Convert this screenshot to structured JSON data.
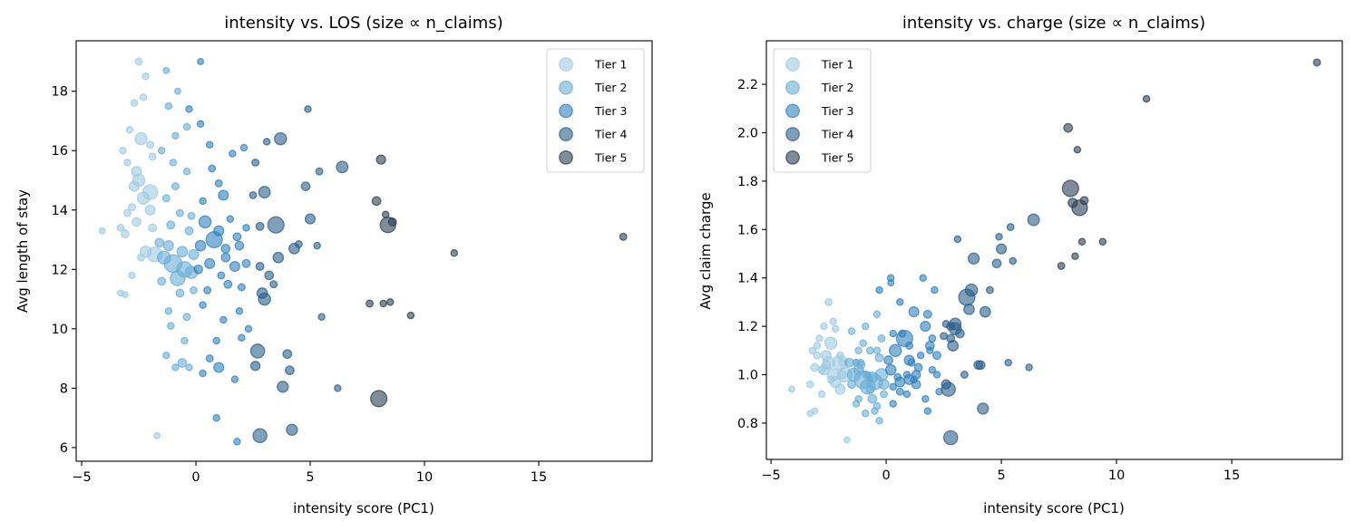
{
  "chart_data": {
    "type": "scatter",
    "points": {
      "columns": [
        "intensity_score",
        "avg_length_of_stay",
        "avg_claim_charge",
        "n_claims",
        "tier"
      ],
      "rows": [
        [
          18.7,
          13.1,
          2.29,
          20,
          5
        ],
        [
          11.3,
          12.55,
          2.14,
          18,
          5
        ],
        [
          9.4,
          10.45,
          1.55,
          18,
          5
        ],
        [
          8.4,
          13.5,
          1.69,
          100,
          5
        ],
        [
          8.0,
          7.65,
          1.77,
          110,
          5
        ],
        [
          8.1,
          15.7,
          1.71,
          35,
          5
        ],
        [
          8.3,
          13.85,
          1.93,
          18,
          5
        ],
        [
          7.9,
          14.3,
          2.02,
          30,
          5
        ],
        [
          8.6,
          13.6,
          1.72,
          25,
          5
        ],
        [
          8.5,
          10.9,
          1.55,
          18,
          5
        ],
        [
          8.2,
          10.85,
          1.49,
          18,
          5
        ],
        [
          7.6,
          10.85,
          1.45,
          20,
          5
        ],
        [
          6.2,
          8.0,
          1.03,
          18,
          4
        ],
        [
          6.4,
          15.45,
          1.64,
          55,
          4
        ],
        [
          5.5,
          10.4,
          1.47,
          18,
          4
        ],
        [
          5.4,
          15.3,
          1.61,
          20,
          4
        ],
        [
          5.3,
          12.8,
          1.05,
          18,
          4
        ],
        [
          5.0,
          13.7,
          1.52,
          40,
          4
        ],
        [
          4.9,
          17.4,
          1.57,
          18,
          4
        ],
        [
          4.8,
          14.8,
          1.46,
          30,
          4
        ],
        [
          4.2,
          6.6,
          0.86,
          50,
          4
        ],
        [
          4.3,
          12.7,
          1.26,
          45,
          4
        ],
        [
          4.0,
          9.15,
          1.04,
          30,
          4
        ],
        [
          4.1,
          8.6,
          1.04,
          30,
          4
        ],
        [
          3.8,
          8.05,
          1.48,
          50,
          4
        ],
        [
          3.7,
          16.4,
          1.35,
          60,
          4
        ],
        [
          3.5,
          13.5,
          1.32,
          110,
          4
        ],
        [
          3.6,
          12.4,
          1.27,
          45,
          4
        ],
        [
          3.4,
          11.5,
          1.0,
          20,
          4
        ],
        [
          3.1,
          16.3,
          1.56,
          18,
          4
        ],
        [
          3.0,
          11.0,
          1.19,
          60,
          4
        ],
        [
          2.8,
          6.4,
          0.74,
          80,
          4
        ],
        [
          2.7,
          9.25,
          0.94,
          80,
          4
        ],
        [
          3.0,
          14.6,
          1.21,
          55,
          4
        ],
        [
          2.6,
          8.75,
          0.96,
          35,
          4
        ],
        [
          2.6,
          15.6,
          1.21,
          20,
          4
        ],
        [
          2.8,
          12.1,
          1.2,
          25,
          4
        ],
        [
          4.5,
          12.85,
          1.35,
          20,
          4
        ],
        [
          2.8,
          13.45,
          1.15,
          25,
          4
        ],
        [
          3.2,
          11.8,
          1.17,
          30,
          4
        ],
        [
          2.9,
          11.2,
          1.12,
          45,
          4
        ],
        [
          2.5,
          14.5,
          1.16,
          20,
          4
        ],
        [
          0.8,
          13.0,
          1.15,
          110,
          3
        ],
        [
          0.4,
          13.6,
          1.1,
          60,
          3
        ],
        [
          1.0,
          13.3,
          1.06,
          40,
          3
        ],
        [
          1.3,
          12.7,
          1.0,
          30,
          3
        ],
        [
          0.6,
          12.2,
          0.97,
          40,
          3
        ],
        [
          1.9,
          12.8,
          1.12,
          30,
          3
        ],
        [
          1.7,
          12.1,
          1.2,
          40,
          3
        ],
        [
          2.2,
          12.2,
          1.08,
          25,
          3
        ],
        [
          1.2,
          14.5,
          1.26,
          40,
          3
        ],
        [
          1.0,
          14.9,
          1.12,
          20,
          3
        ],
        [
          0.7,
          15.4,
          1.17,
          20,
          3
        ],
        [
          1.1,
          11.8,
          1.05,
          20,
          3
        ],
        [
          0.5,
          11.3,
          0.99,
          20,
          3
        ],
        [
          1.4,
          11.5,
          1.03,
          25,
          3
        ],
        [
          2.0,
          11.4,
          1.15,
          20,
          3
        ],
        [
          0.3,
          10.8,
          0.95,
          18,
          3
        ],
        [
          1.2,
          10.3,
          0.98,
          18,
          3
        ],
        [
          0.9,
          9.6,
          1.0,
          18,
          3
        ],
        [
          1.0,
          8.7,
          0.98,
          40,
          3
        ],
        [
          0.6,
          9.0,
          0.93,
          20,
          3
        ],
        [
          0.3,
          8.5,
          0.88,
          18,
          3
        ],
        [
          1.7,
          8.3,
          0.9,
          18,
          3
        ],
        [
          0.9,
          7.0,
          0.92,
          18,
          3
        ],
        [
          1.8,
          6.2,
          0.85,
          18,
          3
        ],
        [
          2.0,
          9.7,
          1.02,
          18,
          3
        ],
        [
          0.2,
          16.9,
          1.4,
          18,
          3
        ],
        [
          0.2,
          19.0,
          1.38,
          15,
          3
        ],
        [
          -0.3,
          17.4,
          1.35,
          18,
          3
        ],
        [
          0.6,
          16.2,
          1.3,
          18,
          3
        ],
        [
          1.6,
          15.9,
          1.4,
          18,
          3
        ],
        [
          2.1,
          16.1,
          1.35,
          18,
          3
        ],
        [
          1.8,
          13.1,
          1.25,
          25,
          3
        ],
        [
          0.1,
          12.0,
          1.06,
          30,
          3
        ],
        [
          1.5,
          13.7,
          1.08,
          18,
          3
        ],
        [
          2.2,
          13.4,
          1.0,
          18,
          3
        ],
        [
          0.3,
          14.3,
          1.17,
          18,
          3
        ],
        [
          1.9,
          10.6,
          1.1,
          18,
          3
        ],
        [
          0.2,
          12.8,
          1.02,
          45,
          3
        ],
        [
          1.3,
          12.4,
          0.96,
          30,
          3
        ],
        [
          2.3,
          10.0,
          0.93,
          18,
          3
        ],
        [
          -1.0,
          12.2,
          0.98,
          130,
          2
        ],
        [
          -0.5,
          12.0,
          0.97,
          100,
          2
        ],
        [
          -1.4,
          12.4,
          1.0,
          70,
          2
        ],
        [
          -0.8,
          11.7,
          0.95,
          90,
          2
        ],
        [
          -0.2,
          11.9,
          1.0,
          60,
          2
        ],
        [
          -1.2,
          12.8,
          1.02,
          40,
          2
        ],
        [
          -0.6,
          12.6,
          0.99,
          45,
          2
        ],
        [
          -0.1,
          12.5,
          0.96,
          40,
          2
        ],
        [
          -1.6,
          12.9,
          1.05,
          30,
          2
        ],
        [
          -1.1,
          13.5,
          1.04,
          25,
          2
        ],
        [
          -0.3,
          13.3,
          1.07,
          25,
          2
        ],
        [
          -0.7,
          13.9,
          1.1,
          20,
          2
        ],
        [
          -1.3,
          14.4,
          1.05,
          20,
          2
        ],
        [
          -0.9,
          14.8,
          1.0,
          20,
          2
        ],
        [
          -0.4,
          15.3,
          1.1,
          18,
          2
        ],
        [
          -1.0,
          15.6,
          1.13,
          18,
          2
        ],
        [
          -1.5,
          16.0,
          1.18,
          18,
          2
        ],
        [
          -0.9,
          16.5,
          1.2,
          18,
          2
        ],
        [
          -0.4,
          16.8,
          1.25,
          18,
          2
        ],
        [
          -1.2,
          17.5,
          1.1,
          18,
          2
        ],
        [
          -1.3,
          18.7,
          1.05,
          15,
          2
        ],
        [
          -0.8,
          18.0,
          1.0,
          15,
          2
        ],
        [
          -0.1,
          11.3,
          0.92,
          20,
          2
        ],
        [
          -0.7,
          11.2,
          0.94,
          25,
          2
        ],
        [
          -1.2,
          10.6,
          0.9,
          18,
          2
        ],
        [
          -0.4,
          10.4,
          0.87,
          20,
          2
        ],
        [
          -1.3,
          9.1,
          0.88,
          18,
          2
        ],
        [
          -0.5,
          9.6,
          0.85,
          18,
          2
        ],
        [
          -0.9,
          8.7,
          0.84,
          18,
          2
        ],
        [
          -0.3,
          8.7,
          0.81,
          18,
          2
        ],
        [
          -0.6,
          8.85,
          0.9,
          30,
          2
        ],
        [
          -1.1,
          10.1,
          1.05,
          18,
          2
        ],
        [
          -0.2,
          13.8,
          1.15,
          20,
          2
        ],
        [
          -1.5,
          11.6,
          0.96,
          25,
          2
        ],
        [
          -2.5,
          15.0,
          1.05,
          60,
          1
        ],
        [
          -2.0,
          14.6,
          1.05,
          90,
          1
        ],
        [
          -2.3,
          14.4,
          1.0,
          60,
          1
        ],
        [
          -2.4,
          16.4,
          1.13,
          60,
          1
        ],
        [
          -2.6,
          15.3,
          1.08,
          40,
          1
        ],
        [
          -2.7,
          14.8,
          1.02,
          40,
          1
        ],
        [
          -1.8,
          12.5,
          1.0,
          90,
          1
        ],
        [
          -2.2,
          12.6,
          0.97,
          50,
          1
        ],
        [
          -2.6,
          13.6,
          1.04,
          30,
          1
        ],
        [
          -3.1,
          13.2,
          1.03,
          25,
          1
        ],
        [
          -3.3,
          13.4,
          0.96,
          18,
          1
        ],
        [
          -4.1,
          13.3,
          0.94,
          15,
          1
        ],
        [
          -2.5,
          19.0,
          1.3,
          20,
          1
        ],
        [
          -2.3,
          17.8,
          1.22,
          18,
          1
        ],
        [
          -2.7,
          17.6,
          1.2,
          18,
          1
        ],
        [
          -2.9,
          16.7,
          1.15,
          18,
          1
        ],
        [
          -3.2,
          16.0,
          1.1,
          18,
          1
        ],
        [
          -3.0,
          15.6,
          1.12,
          18,
          1
        ],
        [
          -2.0,
          16.2,
          1.08,
          20,
          1
        ],
        [
          -1.9,
          15.8,
          1.05,
          20,
          1
        ],
        [
          -2.8,
          14.1,
          1.02,
          20,
          1
        ],
        [
          -1.9,
          13.4,
          1.0,
          25,
          1
        ],
        [
          -2.4,
          12.4,
          0.98,
          20,
          1
        ],
        [
          -2.8,
          11.8,
          0.92,
          18,
          1
        ],
        [
          -3.3,
          11.2,
          0.84,
          15,
          1
        ],
        [
          -3.1,
          11.15,
          0.85,
          15,
          1
        ],
        [
          -1.7,
          6.4,
          0.73,
          15,
          1
        ],
        [
          -2.2,
          18.5,
          1.19,
          18,
          1
        ],
        [
          -3.0,
          13.9,
          1.08,
          20,
          1
        ],
        [
          -2.0,
          14.0,
          0.94,
          40,
          1
        ]
      ]
    },
    "legend": {
      "entries": [
        "Tier 1",
        "Tier 2",
        "Tier 3",
        "Tier 4",
        "Tier 5"
      ],
      "colors": [
        "#9ecae1",
        "#6baed6",
        "#3182bd",
        "#2c5f8a",
        "#2b3f52"
      ]
    },
    "panels": [
      {
        "title": "intensity vs. LOS (size ∝ n_claims)",
        "xlabel": "intensity score (PC1)",
        "ylabel": "Avg length of stay",
        "x_column": "intensity_score",
        "y_column": "avg_length_of_stay",
        "xlim": [
          -5.24,
          19.96
        ],
        "ylim": [
          5.54,
          19.7
        ],
        "xticks": [
          -5,
          0,
          5,
          10,
          15
        ],
        "yticks": [
          6,
          8,
          10,
          12,
          14,
          16,
          18
        ],
        "ytick_labels": [
          "6",
          "8",
          "10",
          "12",
          "14",
          "16",
          "18"
        ],
        "legend_position": "upper right",
        "grid": false
      },
      {
        "title": "intensity vs. charge (size ∝ n_claims)",
        "xlabel": "intensity score (PC1)",
        "ylabel": "Avg claim charge",
        "x_column": "intensity_score",
        "y_column": "avg_claim_charge",
        "xlim": [
          -5.2,
          19.8
        ],
        "ylim": [
          0.65,
          2.38
        ],
        "xticks": [
          -5,
          0,
          5,
          10,
          15
        ],
        "yticks": [
          0.8,
          1.0,
          1.2,
          1.4,
          1.6,
          1.8,
          2.0,
          2.2
        ],
        "ytick_labels": [
          "0.8",
          "1.0",
          "1.2",
          "1.4",
          "1.6",
          "1.8",
          "2.0",
          "2.2"
        ],
        "legend_position": "upper left",
        "grid": false
      }
    ]
  }
}
